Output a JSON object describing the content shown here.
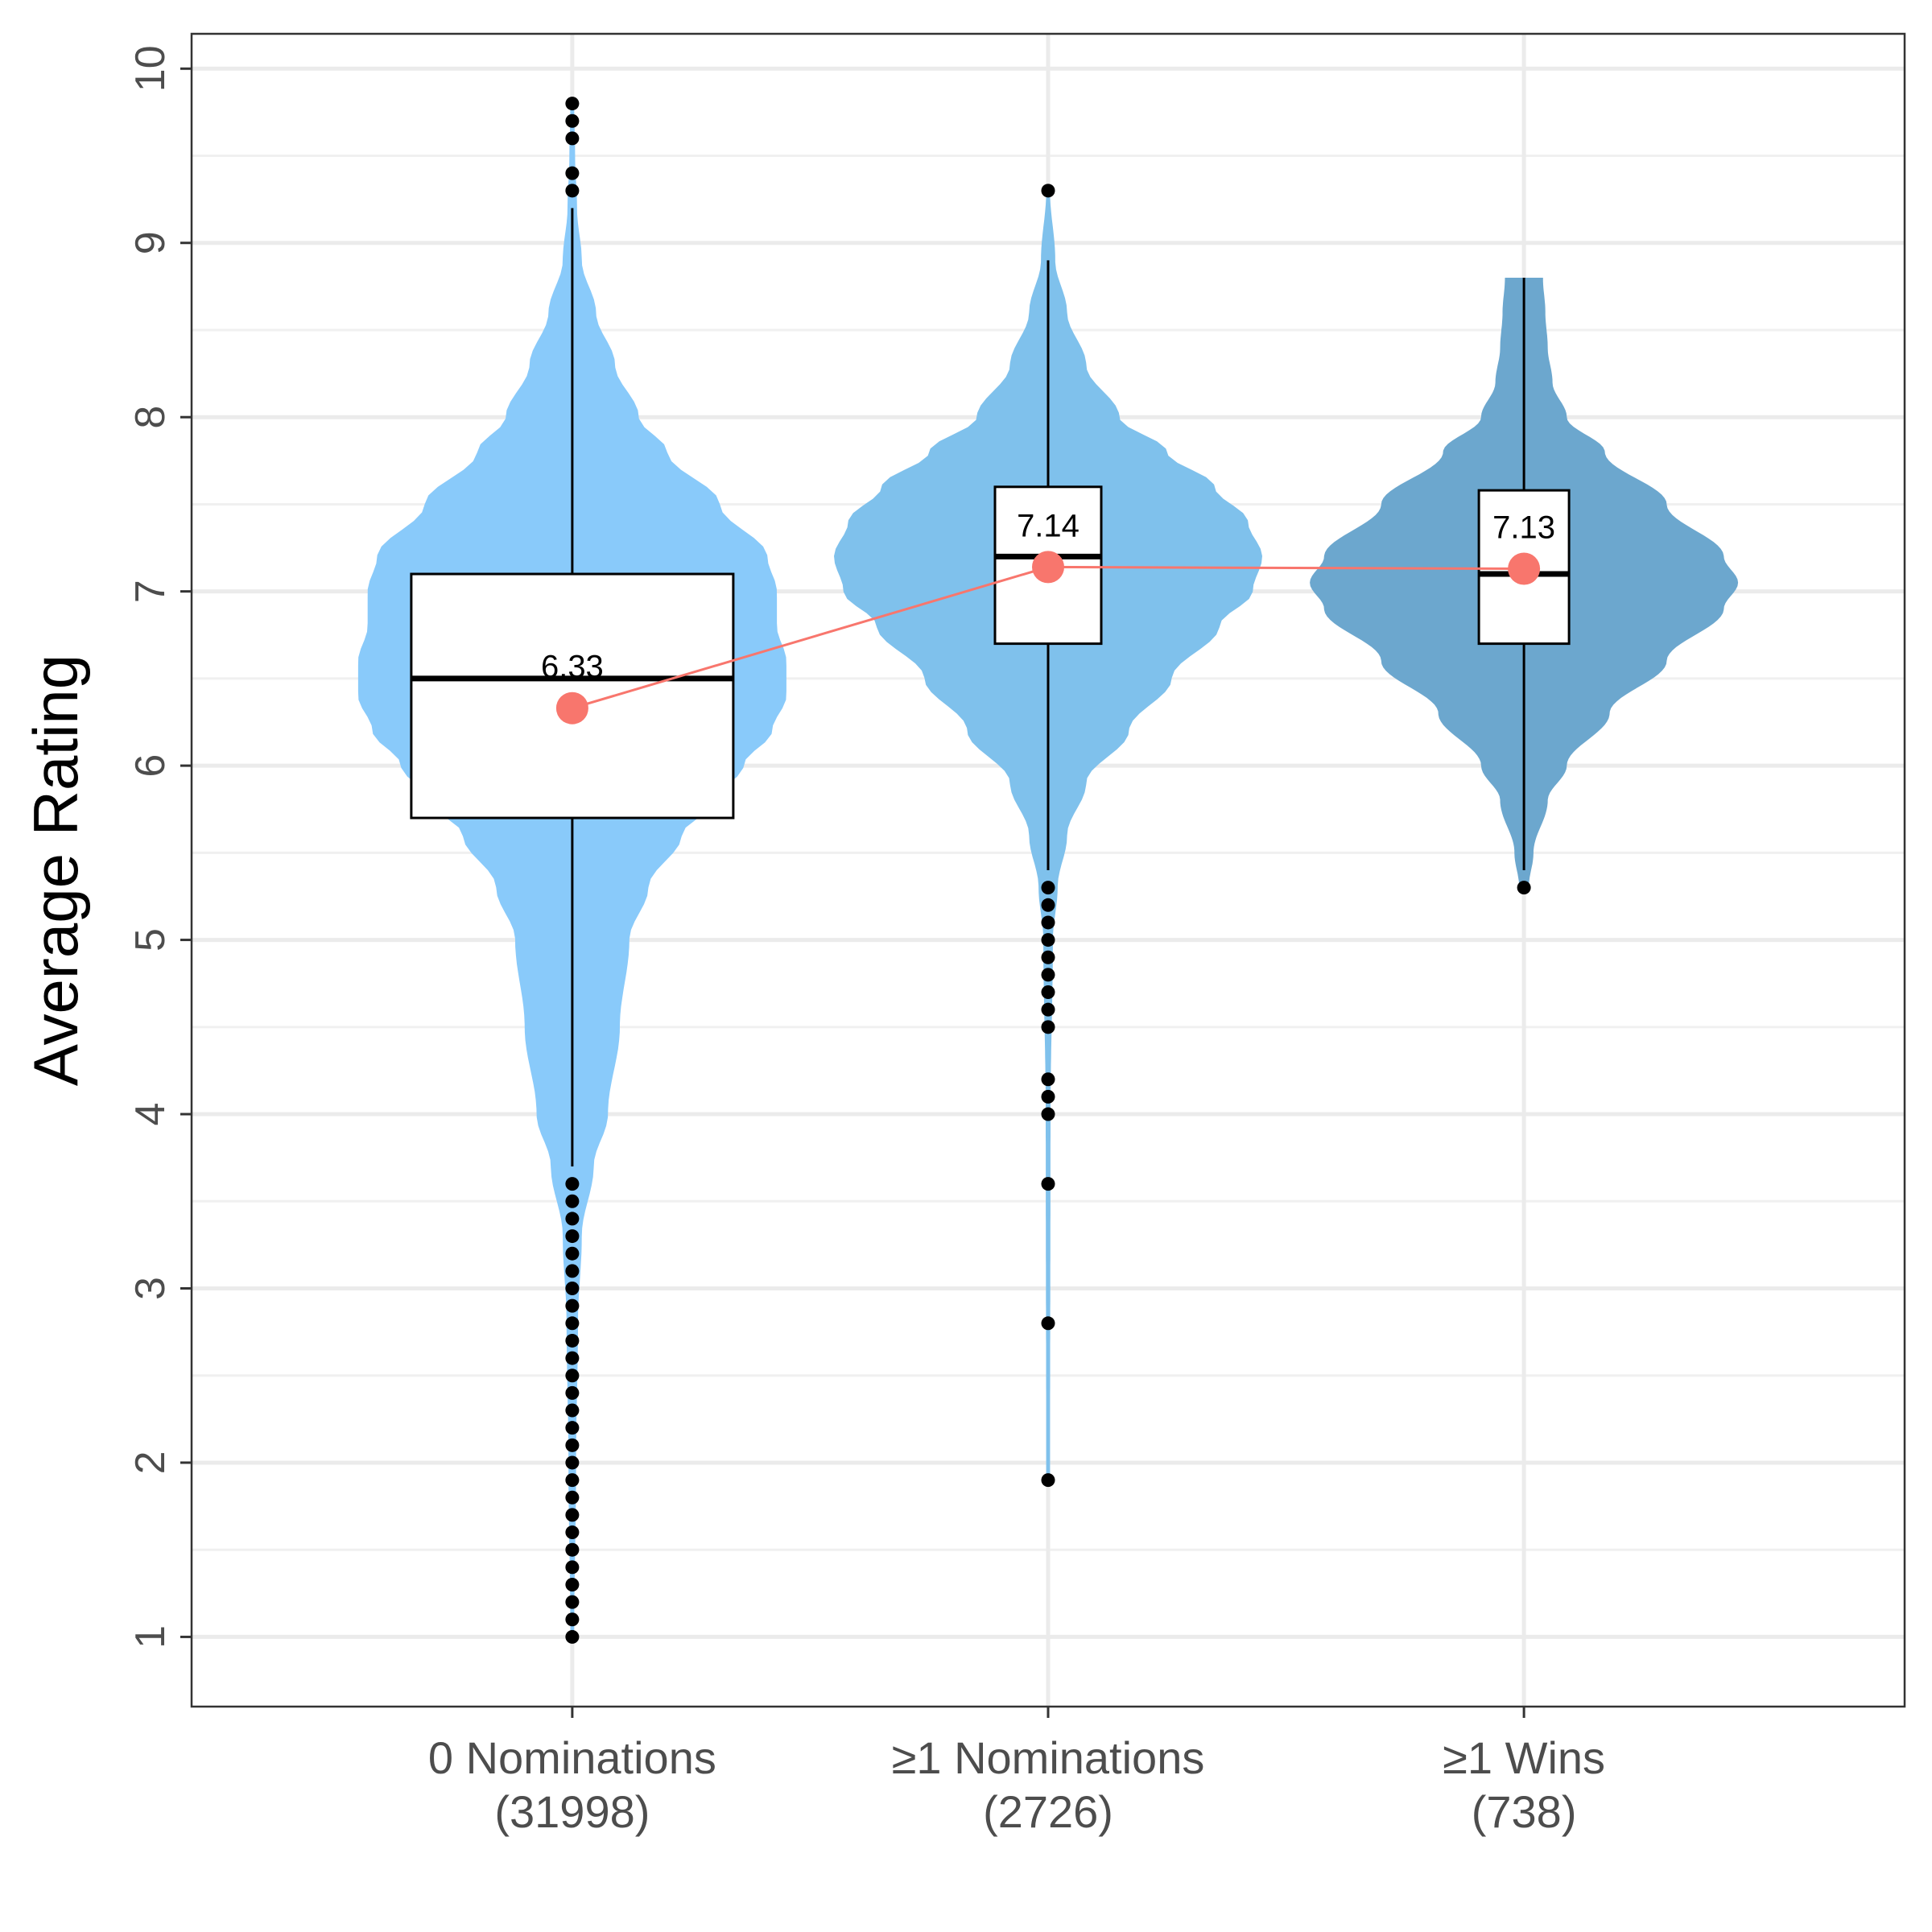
{
  "chart_data": {
    "type": "violin",
    "title": "",
    "xlabel": "",
    "ylabel": "Average Rating",
    "ylim": [
      0.6,
      10.2
    ],
    "yticks": [
      1,
      2,
      3,
      4,
      5,
      6,
      7,
      8,
      9,
      10
    ],
    "grid": true,
    "legend": "none",
    "mean_line_color": "#f8766d",
    "categories": [
      {
        "label_line1": "0 Nominations",
        "label_line2": "(31998)",
        "fill": "#89cafa",
        "mean": 6.33,
        "mean_label": "6.33",
        "box": {
          "q1": 5.7,
          "median": 6.5,
          "q3": 7.1,
          "whisker_low": 3.7,
          "whisker_high": 9.2
        },
        "violin_range": [
          1.0,
          9.8
        ],
        "violin_profile": [
          [
            1.0,
            0.004
          ],
          [
            2.0,
            0.008
          ],
          [
            2.8,
            0.012
          ],
          [
            3.3,
            0.02
          ],
          [
            3.7,
            0.045
          ],
          [
            4.0,
            0.075
          ],
          [
            4.5,
            0.1
          ],
          [
            5.0,
            0.12
          ],
          [
            5.3,
            0.16
          ],
          [
            5.6,
            0.23
          ],
          [
            5.8,
            0.3
          ],
          [
            6.0,
            0.36
          ],
          [
            6.2,
            0.42
          ],
          [
            6.4,
            0.45
          ],
          [
            6.6,
            0.45
          ],
          [
            6.8,
            0.43
          ],
          [
            7.0,
            0.43
          ],
          [
            7.2,
            0.41
          ],
          [
            7.5,
            0.31
          ],
          [
            7.8,
            0.2
          ],
          [
            8.0,
            0.14
          ],
          [
            8.3,
            0.09
          ],
          [
            8.6,
            0.05
          ],
          [
            8.9,
            0.02
          ],
          [
            9.2,
            0.01
          ],
          [
            9.5,
            0.006
          ],
          [
            9.8,
            0.004
          ]
        ],
        "outliers": [
          1.0,
          1.1,
          1.2,
          1.3,
          1.4,
          1.5,
          1.6,
          1.7,
          1.8,
          1.9,
          2.0,
          2.1,
          2.2,
          2.3,
          2.4,
          2.5,
          2.6,
          2.7,
          2.8,
          2.9,
          3.0,
          3.1,
          3.2,
          3.3,
          3.4,
          3.5,
          3.6,
          9.3,
          9.4,
          9.6,
          9.7,
          9.8
        ]
      },
      {
        "label_line1": "≥1 Nominations",
        "label_line2": "(2726)",
        "fill": "#7fc1ec",
        "mean": 7.14,
        "mean_label": "7.14",
        "box": {
          "q1": 6.7,
          "median": 7.2,
          "q3": 7.6,
          "whisker_low": 5.4,
          "whisker_high": 8.9
        },
        "violin_range": [
          1.9,
          9.3
        ],
        "violin_profile": [
          [
            1.9,
            0.004
          ],
          [
            4.0,
            0.005
          ],
          [
            5.0,
            0.01
          ],
          [
            5.3,
            0.02
          ],
          [
            5.6,
            0.04
          ],
          [
            5.9,
            0.08
          ],
          [
            6.2,
            0.17
          ],
          [
            6.5,
            0.26
          ],
          [
            6.8,
            0.36
          ],
          [
            7.0,
            0.43
          ],
          [
            7.2,
            0.45
          ],
          [
            7.4,
            0.42
          ],
          [
            7.6,
            0.35
          ],
          [
            7.8,
            0.25
          ],
          [
            8.0,
            0.15
          ],
          [
            8.3,
            0.08
          ],
          [
            8.6,
            0.04
          ],
          [
            8.9,
            0.015
          ],
          [
            9.3,
            0.004
          ]
        ],
        "outliers": [
          1.9,
          2.8,
          3.6,
          4.0,
          4.1,
          4.2,
          4.5,
          4.6,
          4.7,
          4.8,
          4.9,
          5.0,
          5.1,
          5.2,
          5.3,
          9.3
        ]
      },
      {
        "label_line1": "≥1 Wins",
        "label_line2": "(738)",
        "fill": "#6ca7ce",
        "mean": 7.13,
        "mean_label": "7.13",
        "box": {
          "q1": 6.7,
          "median": 7.1,
          "q3": 7.58,
          "whisker_low": 5.4,
          "whisker_high": 8.8
        },
        "violin_range": [
          5.3,
          8.8
        ],
        "violin_profile": [
          [
            5.3,
            0.01
          ],
          [
            5.5,
            0.02
          ],
          [
            5.8,
            0.05
          ],
          [
            6.0,
            0.09
          ],
          [
            6.3,
            0.18
          ],
          [
            6.6,
            0.3
          ],
          [
            6.9,
            0.42
          ],
          [
            7.05,
            0.45
          ],
          [
            7.2,
            0.42
          ],
          [
            7.5,
            0.3
          ],
          [
            7.8,
            0.17
          ],
          [
            8.0,
            0.09
          ],
          [
            8.2,
            0.06
          ],
          [
            8.4,
            0.05
          ],
          [
            8.6,
            0.045
          ],
          [
            8.8,
            0.04
          ]
        ],
        "outliers": [
          5.3
        ]
      }
    ]
  }
}
